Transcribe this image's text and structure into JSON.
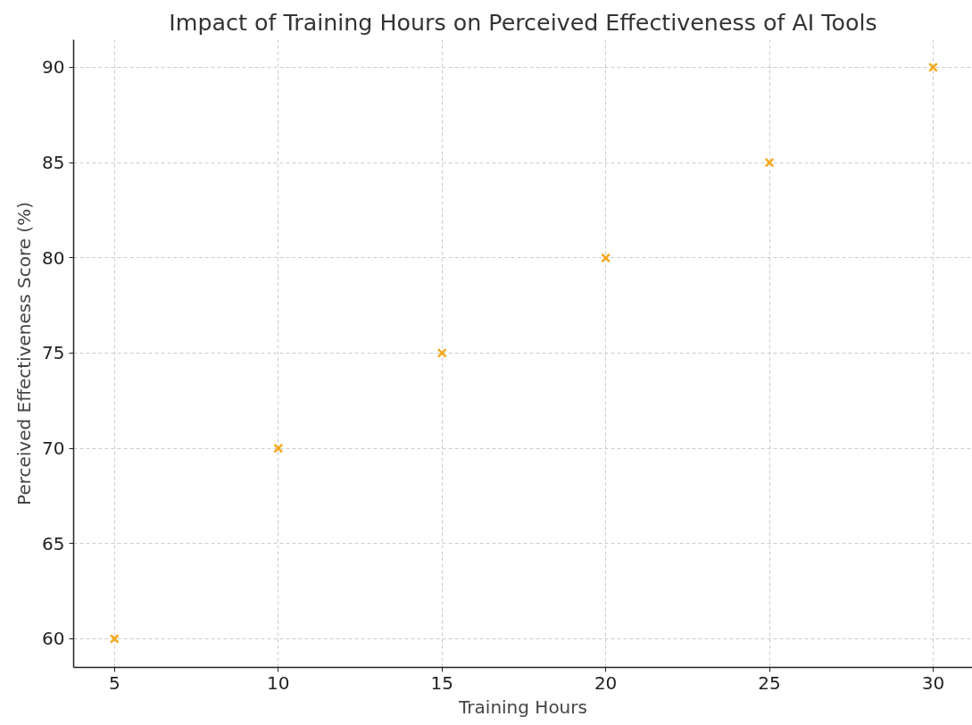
{
  "chart_data": {
    "type": "scatter",
    "title": "Impact of Training Hours on Perceived Effectiveness of AI Tools",
    "xlabel": "Training Hours",
    "ylabel": "Perceived Effectiveness Score (%)",
    "x": [
      5,
      10,
      15,
      20,
      25,
      30
    ],
    "series": [
      {
        "color": "#f5a81c",
        "values": [
          60,
          70,
          75,
          80,
          85,
          90
        ]
      }
    ],
    "xlim": [
      3.75,
      31.2
    ],
    "ylim": [
      58.5,
      91.45
    ],
    "xticks": [
      5,
      10,
      15,
      20,
      25,
      30
    ],
    "yticks": [
      60,
      65,
      70,
      75,
      80,
      85,
      90
    ],
    "grid": true,
    "marker": "cross"
  }
}
